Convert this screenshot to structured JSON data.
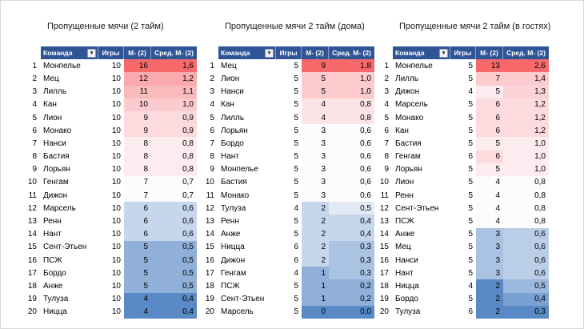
{
  "colors": {
    "header_bg": "#2F5597",
    "header_text": "#FFFFFF",
    "scale_max_red": "#F8696B",
    "scale_mid_white": "#FCFCFF",
    "scale_min_blue": "#5A8AC6"
  },
  "icons": {
    "filter_dropdown": "▾"
  },
  "tables": [
    {
      "title": "Пропущенные мячи (2 тайм)",
      "headers": [
        "Команда",
        "Игры",
        "М- (2)",
        "Сред. М- (2)"
      ],
      "rows": [
        {
          "rank": 1,
          "team": "Монпелье",
          "games": 10,
          "goals": 16,
          "avg": "1,6"
        },
        {
          "rank": 2,
          "team": "Мец",
          "games": 10,
          "goals": 12,
          "avg": "1,2"
        },
        {
          "rank": 3,
          "team": "Лилль",
          "games": 10,
          "goals": 11,
          "avg": "1,1"
        },
        {
          "rank": 4,
          "team": "Кан",
          "games": 10,
          "goals": 10,
          "avg": "1,0"
        },
        {
          "rank": 5,
          "team": "Лион",
          "games": 10,
          "goals": 9,
          "avg": "0,9"
        },
        {
          "rank": 6,
          "team": "Монако",
          "games": 10,
          "goals": 9,
          "avg": "0,9"
        },
        {
          "rank": 7,
          "team": "Нанси",
          "games": 10,
          "goals": 8,
          "avg": "0,8"
        },
        {
          "rank": 8,
          "team": "Бастия",
          "games": 10,
          "goals": 8,
          "avg": "0,8"
        },
        {
          "rank": 9,
          "team": "Лорьян",
          "games": 10,
          "goals": 8,
          "avg": "0,8"
        },
        {
          "rank": 10,
          "team": "Генгам",
          "games": 10,
          "goals": 7,
          "avg": "0,7"
        },
        {
          "rank": 11,
          "team": "Дижон",
          "games": 10,
          "goals": 7,
          "avg": "0,7"
        },
        {
          "rank": 12,
          "team": "Марсель",
          "games": 10,
          "goals": 6,
          "avg": "0,6"
        },
        {
          "rank": 13,
          "team": "Ренн",
          "games": 10,
          "goals": 6,
          "avg": "0,6"
        },
        {
          "rank": 14,
          "team": "Нант",
          "games": 10,
          "goals": 6,
          "avg": "0,6"
        },
        {
          "rank": 15,
          "team": "Сент-Этьен",
          "games": 10,
          "goals": 5,
          "avg": "0,5"
        },
        {
          "rank": 16,
          "team": "ПСЖ",
          "games": 10,
          "goals": 5,
          "avg": "0,5"
        },
        {
          "rank": 17,
          "team": "Бордо",
          "games": 10,
          "goals": 5,
          "avg": "0,5"
        },
        {
          "rank": 18,
          "team": "Анже",
          "games": 10,
          "goals": 5,
          "avg": "0,5"
        },
        {
          "rank": 19,
          "team": "Тулуза",
          "games": 10,
          "goals": 4,
          "avg": "0,4"
        },
        {
          "rank": 20,
          "team": "Ницца",
          "games": 10,
          "goals": 4,
          "avg": "0,4"
        }
      ]
    },
    {
      "title": "Пропущенные мячи 2 тайм (дома)",
      "headers": [
        "Команда",
        "Игры",
        "М- (2)",
        "Сред. М- (2)"
      ],
      "rows": [
        {
          "rank": 1,
          "team": "Мец",
          "games": 5,
          "goals": 9,
          "avg": "1,8"
        },
        {
          "rank": 2,
          "team": "Лион",
          "games": 5,
          "goals": 5,
          "avg": "1,0"
        },
        {
          "rank": 3,
          "team": "Нанси",
          "games": 5,
          "goals": 5,
          "avg": "1,0"
        },
        {
          "rank": 4,
          "team": "Кан",
          "games": 5,
          "goals": 4,
          "avg": "0,8"
        },
        {
          "rank": 5,
          "team": "Лилль",
          "games": 5,
          "goals": 4,
          "avg": "0,8"
        },
        {
          "rank": 6,
          "team": "Лорьян",
          "games": 5,
          "goals": 3,
          "avg": "0,6"
        },
        {
          "rank": 7,
          "team": "Бордо",
          "games": 5,
          "goals": 3,
          "avg": "0,6"
        },
        {
          "rank": 8,
          "team": "Нант",
          "games": 5,
          "goals": 3,
          "avg": "0,6"
        },
        {
          "rank": 9,
          "team": "Монпелье",
          "games": 5,
          "goals": 3,
          "avg": "0,6"
        },
        {
          "rank": 10,
          "team": "Бастия",
          "games": 5,
          "goals": 3,
          "avg": "0,6"
        },
        {
          "rank": 11,
          "team": "Монако",
          "games": 5,
          "goals": 3,
          "avg": "0,6"
        },
        {
          "rank": 12,
          "team": "Тулуза",
          "games": 4,
          "goals": 2,
          "avg": "0,5"
        },
        {
          "rank": 13,
          "team": "Ренн",
          "games": 5,
          "goals": 2,
          "avg": "0,4"
        },
        {
          "rank": 14,
          "team": "Анже",
          "games": 5,
          "goals": 2,
          "avg": "0,4"
        },
        {
          "rank": 15,
          "team": "Ницца",
          "games": 6,
          "goals": 2,
          "avg": "0,3"
        },
        {
          "rank": 16,
          "team": "Дижон",
          "games": 6,
          "goals": 2,
          "avg": "0,3"
        },
        {
          "rank": 17,
          "team": "Генгам",
          "games": 4,
          "goals": 1,
          "avg": "0,3"
        },
        {
          "rank": 18,
          "team": "ПСЖ",
          "games": 5,
          "goals": 1,
          "avg": "0,2"
        },
        {
          "rank": 19,
          "team": "Сент-Этьен",
          "games": 5,
          "goals": 1,
          "avg": "0,2"
        },
        {
          "rank": 20,
          "team": "Марсель",
          "games": 5,
          "goals": 0,
          "avg": "0,0"
        }
      ]
    },
    {
      "title": "Пропущенные мячи 2 тайм (в гостях)",
      "headers": [
        "Команда",
        "Игры",
        "М- (2)",
        "Сред. М- (2)"
      ],
      "rows": [
        {
          "rank": 1,
          "team": "Монпелье",
          "games": 5,
          "goals": 13,
          "avg": "2,6"
        },
        {
          "rank": 2,
          "team": "Лилль",
          "games": 5,
          "goals": 7,
          "avg": "1,4"
        },
        {
          "rank": 3,
          "team": "Дижон",
          "games": 4,
          "goals": 5,
          "avg": "1,3"
        },
        {
          "rank": 4,
          "team": "Марсель",
          "games": 5,
          "goals": 6,
          "avg": "1,2"
        },
        {
          "rank": 5,
          "team": "Монако",
          "games": 5,
          "goals": 6,
          "avg": "1,2"
        },
        {
          "rank": 6,
          "team": "Кан",
          "games": 5,
          "goals": 6,
          "avg": "1,2"
        },
        {
          "rank": 7,
          "team": "Бастия",
          "games": 5,
          "goals": 5,
          "avg": "1,0"
        },
        {
          "rank": 8,
          "team": "Генгам",
          "games": 6,
          "goals": 6,
          "avg": "1,0"
        },
        {
          "rank": 9,
          "team": "Лорьян",
          "games": 5,
          "goals": 5,
          "avg": "1,0"
        },
        {
          "rank": 10,
          "team": "Лион",
          "games": 5,
          "goals": 4,
          "avg": "0,8"
        },
        {
          "rank": 11,
          "team": "Ренн",
          "games": 5,
          "goals": 4,
          "avg": "0,8"
        },
        {
          "rank": 12,
          "team": "Сент-Этьен",
          "games": 5,
          "goals": 4,
          "avg": "0,8"
        },
        {
          "rank": 13,
          "team": "ПСЖ",
          "games": 5,
          "goals": 4,
          "avg": "0,8"
        },
        {
          "rank": 14,
          "team": "Анже",
          "games": 5,
          "goals": 3,
          "avg": "0,6"
        },
        {
          "rank": 15,
          "team": "Мец",
          "games": 5,
          "goals": 3,
          "avg": "0,6"
        },
        {
          "rank": 16,
          "team": "Нанси",
          "games": 5,
          "goals": 3,
          "avg": "0,6"
        },
        {
          "rank": 17,
          "team": "Нант",
          "games": 5,
          "goals": 3,
          "avg": "0,6"
        },
        {
          "rank": 18,
          "team": "Ницца",
          "games": 4,
          "goals": 2,
          "avg": "0,5"
        },
        {
          "rank": 19,
          "team": "Бордо",
          "games": 5,
          "goals": 2,
          "avg": "0,4"
        },
        {
          "rank": 20,
          "team": "Тулуза",
          "games": 6,
          "goals": 2,
          "avg": "0,3"
        }
      ]
    }
  ]
}
